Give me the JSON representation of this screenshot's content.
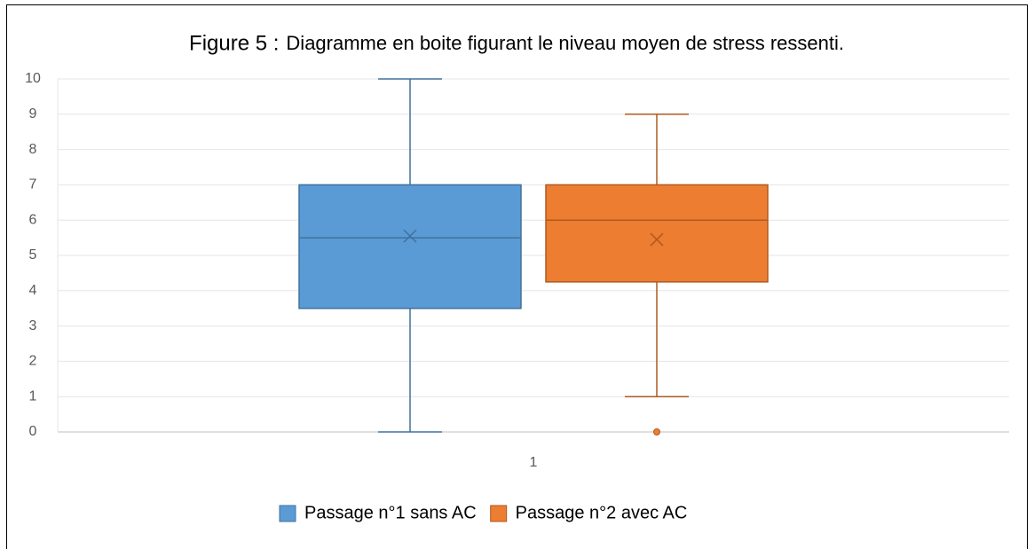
{
  "chart_data": {
    "type": "box",
    "title_parts": [
      "Figure 5 :",
      "Diagramme en boite figurant le niveau moyen de stress ressenti."
    ],
    "categories": [
      "1"
    ],
    "ylim": [
      0,
      10
    ],
    "yticks": [
      0,
      1,
      2,
      3,
      4,
      5,
      6,
      7,
      8,
      9,
      10
    ],
    "grid": true,
    "legend": "bottom",
    "series": [
      {
        "name": "Passage n°1 sans AC",
        "color": "#5b9bd5",
        "edge": "#41719c",
        "min": 0,
        "q1": 3.5,
        "median": 5.5,
        "q3": 7,
        "max": 10,
        "mean": 5.55,
        "outliers": []
      },
      {
        "name": "Passage n°2 avec AC",
        "color": "#ed7d31",
        "edge": "#ae5a21",
        "min": 1,
        "q1": 4.25,
        "median": 6,
        "q3": 7,
        "max": 9,
        "mean": 5.45,
        "outliers": [
          0
        ]
      }
    ]
  }
}
